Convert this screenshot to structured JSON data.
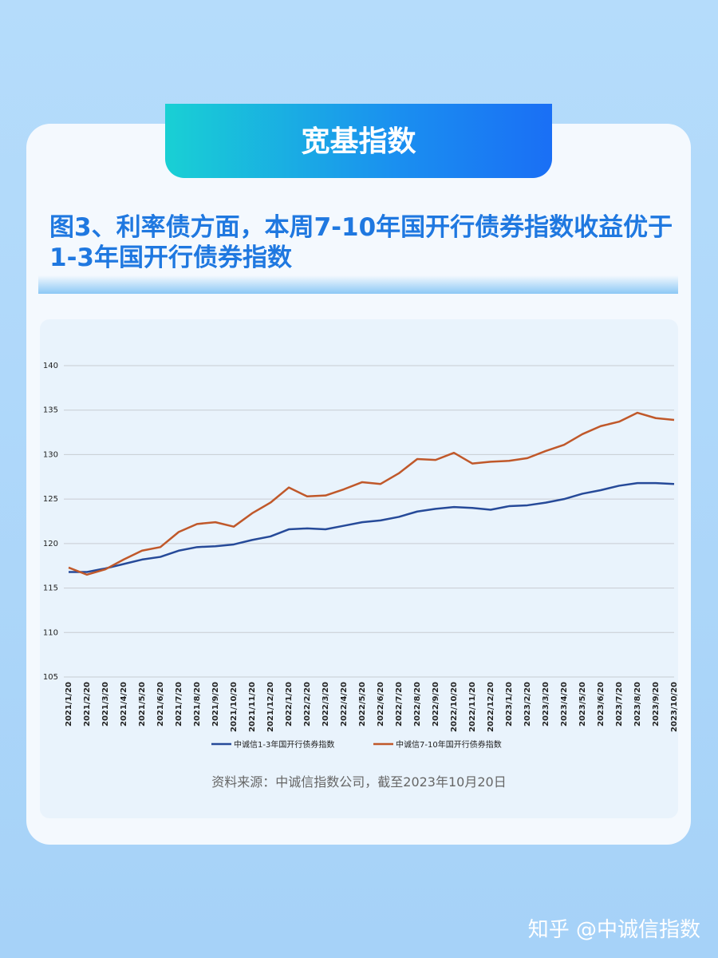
{
  "badge": "宽基指数",
  "watermark": "知乎 @中诚信指数",
  "chart_data": {
    "type": "line",
    "title": "图3、利率债方面，本周7-10年国开行债券指数收益优于1-3年国开行债券指数",
    "source": "资料来源：中诚信指数公司，截至2023年10月20日",
    "categories": [
      "2021/1/20",
      "2021/2/20",
      "2021/3/20",
      "2021/4/20",
      "2021/5/20",
      "2021/6/20",
      "2021/7/20",
      "2021/8/20",
      "2021/9/20",
      "2021/10/20",
      "2021/11/20",
      "2021/12/20",
      "2022/1/20",
      "2022/2/20",
      "2022/3/20",
      "2022/4/20",
      "2022/5/20",
      "2022/6/20",
      "2022/7/20",
      "2022/8/20",
      "2022/9/20",
      "2022/10/20",
      "2022/11/20",
      "2022/12/20",
      "2023/1/20",
      "2023/2/20",
      "2023/3/20",
      "2023/4/20",
      "2023/5/20",
      "2023/6/20",
      "2023/7/20",
      "2023/8/20",
      "2023/9/20",
      "2023/10/20"
    ],
    "series": [
      {
        "name": "中诚信1-3年国开行债券指数",
        "color": "#264a99",
        "values": [
          116.8,
          116.8,
          117.2,
          117.7,
          118.2,
          118.5,
          119.2,
          119.6,
          119.7,
          119.9,
          120.4,
          120.8,
          121.6,
          121.7,
          121.6,
          122.0,
          122.4,
          122.6,
          123.0,
          123.6,
          123.9,
          124.1,
          124.0,
          123.8,
          124.2,
          124.3,
          124.6,
          125.0,
          125.6,
          126.0,
          126.5,
          126.8,
          126.8,
          126.7
        ]
      },
      {
        "name": "中诚信7-10年国开行债券指数",
        "color": "#c0582a",
        "values": [
          117.3,
          116.5,
          117.1,
          118.2,
          119.2,
          119.6,
          121.3,
          122.2,
          122.4,
          121.9,
          123.4,
          124.6,
          126.3,
          125.3,
          125.4,
          126.1,
          126.9,
          126.7,
          127.9,
          129.5,
          129.4,
          130.2,
          129.0,
          129.2,
          129.3,
          129.6,
          130.4,
          131.1,
          132.3,
          133.2,
          133.7,
          134.7,
          134.1,
          133.9
        ]
      }
    ],
    "ylim": [
      105,
      140
    ],
    "yticks": [
      105,
      110,
      115,
      120,
      125,
      130,
      135,
      140
    ],
    "grid": true
  }
}
